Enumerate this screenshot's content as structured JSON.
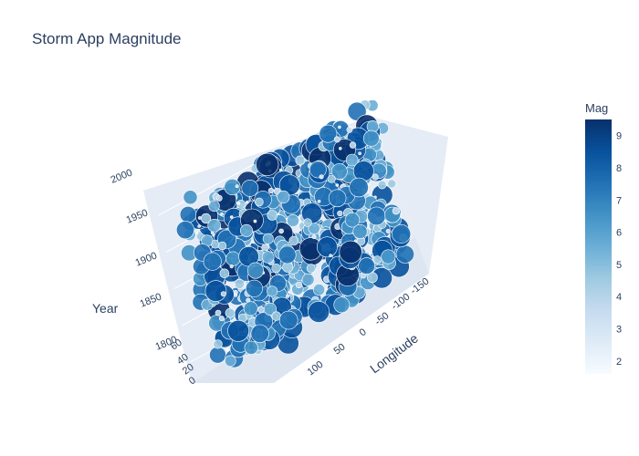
{
  "chart_data": {
    "type": "scatter3d",
    "title": "Storm App Magnitude",
    "axes": {
      "x": {
        "label": "Longitude",
        "ticks": [
          "-150",
          "-100",
          "-50",
          "0",
          "50",
          "100"
        ],
        "range": [
          -180,
          180
        ]
      },
      "y": {
        "label": "",
        "ticks": [
          "60",
          "40",
          "20",
          "0"
        ],
        "range": [
          -10,
          80
        ]
      },
      "z": {
        "label": "Year",
        "ticks": [
          "1800",
          "1850",
          "1900",
          "1950",
          "2000"
        ],
        "range": [
          1790,
          2020
        ]
      }
    },
    "color": {
      "label": "Mag",
      "ticks": [
        "2",
        "3",
        "4",
        "5",
        "6",
        "7",
        "8",
        "9"
      ],
      "range": [
        1.6,
        9.5
      ],
      "scale": [
        "#f7fbff",
        "#deebf7",
        "#c6dbef",
        "#9ecae1",
        "#6baed6",
        "#4292c6",
        "#2171b5",
        "#08519c",
        "#08306b"
      ]
    },
    "marker_size": "proportional to magnitude",
    "colors": {
      "pane": "#e5ecf6",
      "grid": "#ffffff",
      "text": "#2a3f5f"
    }
  }
}
